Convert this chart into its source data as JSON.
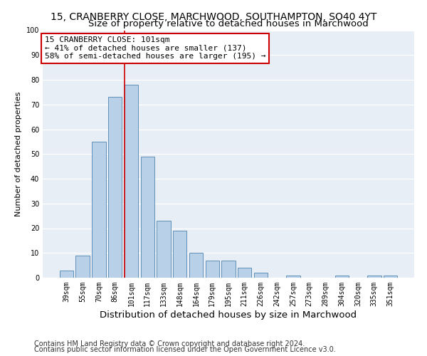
{
  "title1": "15, CRANBERRY CLOSE, MARCHWOOD, SOUTHAMPTON, SO40 4YT",
  "title2": "Size of property relative to detached houses in Marchwood",
  "xlabel": "Distribution of detached houses by size in Marchwood",
  "ylabel": "Number of detached properties",
  "categories": [
    "39sqm",
    "55sqm",
    "70sqm",
    "86sqm",
    "101sqm",
    "117sqm",
    "133sqm",
    "148sqm",
    "164sqm",
    "179sqm",
    "195sqm",
    "211sqm",
    "226sqm",
    "242sqm",
    "257sqm",
    "273sqm",
    "289sqm",
    "304sqm",
    "320sqm",
    "335sqm",
    "351sqm"
  ],
  "values": [
    3,
    9,
    55,
    73,
    78,
    49,
    23,
    19,
    10,
    7,
    7,
    4,
    2,
    0,
    1,
    0,
    0,
    1,
    0,
    1,
    1
  ],
  "bar_color": "#b8d0e8",
  "bar_edge_color": "#6090b8",
  "vline_color": "#cc0000",
  "annotation_line1": "15 CRANBERRY CLOSE: 101sqm",
  "annotation_line2": "← 41% of detached houses are smaller (137)",
  "annotation_line3": "58% of semi-detached houses are larger (195) →",
  "annotation_box_color": "#ffffff",
  "annotation_box_edge": "#cc0000",
  "footnote1": "Contains HM Land Registry data © Crown copyright and database right 2024.",
  "footnote2": "Contains public sector information licensed under the Open Government Licence v3.0.",
  "ylim": [
    0,
    100
  ],
  "yticks": [
    0,
    10,
    20,
    30,
    40,
    50,
    60,
    70,
    80,
    90,
    100
  ],
  "bg_color": "#e8eef5",
  "title1_fontsize": 10,
  "title2_fontsize": 9.5,
  "xlabel_fontsize": 9.5,
  "ylabel_fontsize": 8,
  "tick_fontsize": 7,
  "annot_fontsize": 8,
  "footnote_fontsize": 7
}
